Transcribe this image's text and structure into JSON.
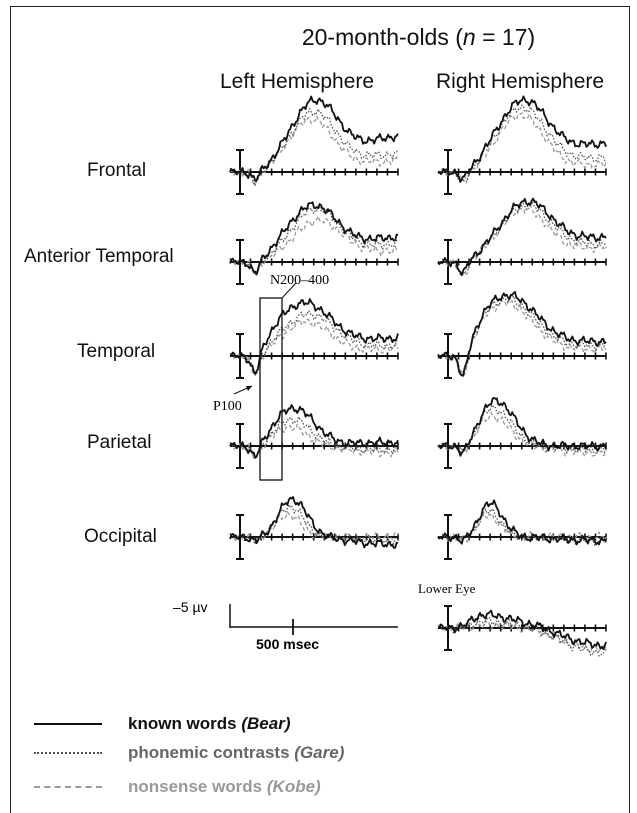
{
  "title": {
    "prefix": "20-month-olds (",
    "n_symbol": "n",
    "suffix": " = 17)"
  },
  "hemispheres": [
    "Left Hemisphere",
    "Right Hemisphere"
  ],
  "regions": [
    "Frontal",
    "Anterior Temporal",
    "Temporal",
    "Parietal",
    "Occipital"
  ],
  "annotations": {
    "window": "N200–400",
    "peak": "P100",
    "eye": "Lower Eye"
  },
  "scale": {
    "amplitude": "–5 µv",
    "time": "500 msec"
  },
  "legend": [
    {
      "label": "known words",
      "word": "(Bear)",
      "style": "solid",
      "color": "#111111"
    },
    {
      "label": "phonemic contrasts",
      "word": "(Gare)",
      "style": "dotted",
      "color": "#555555"
    },
    {
      "label": "nonsense words",
      "word": "(Kobe)",
      "style": "dashed",
      "color": "#999999"
    }
  ],
  "chart_data": {
    "type": "line",
    "x_unit": "msec",
    "x_range": [
      -100,
      1300
    ],
    "y_unit": "µv",
    "negative_up": true,
    "series_names": [
      "known words (Bear)",
      "phonemic contrasts (Gare)",
      "nonsense words (Kobe)"
    ],
    "panels": [
      {
        "region": "Frontal",
        "hemisphere": "Left",
        "waves": [
          {
            "peak": 9.5,
            "center": 620,
            "width": 300,
            "end": 5.0,
            "p100": 1.0
          },
          {
            "peak": 8.0,
            "center": 600,
            "width": 280,
            "end": 2.5,
            "p100": 1.5
          },
          {
            "peak": 7.0,
            "center": 580,
            "width": 270,
            "end": 1.5,
            "p100": 1.5
          }
        ]
      },
      {
        "region": "Frontal",
        "hemisphere": "Right",
        "waves": [
          {
            "peak": 9.5,
            "center": 620,
            "width": 320,
            "end": 4.0,
            "p100": 1.0
          },
          {
            "peak": 8.5,
            "center": 600,
            "width": 300,
            "end": 2.0,
            "p100": 1.5
          },
          {
            "peak": 7.5,
            "center": 590,
            "width": 280,
            "end": 1.0,
            "p100": 1.5
          }
        ]
      },
      {
        "region": "Anterior Temporal",
        "hemisphere": "Left",
        "waves": [
          {
            "peak": 7.5,
            "center": 600,
            "width": 320,
            "end": 3.5,
            "p100": 1.5
          },
          {
            "peak": 7.0,
            "center": 620,
            "width": 300,
            "end": 2.5,
            "p100": 1.5
          },
          {
            "peak": 5.5,
            "center": 640,
            "width": 300,
            "end": 1.5,
            "p100": 1.5
          }
        ]
      },
      {
        "region": "Anterior Temporal",
        "hemisphere": "Right",
        "waves": [
          {
            "peak": 8.0,
            "center": 650,
            "width": 330,
            "end": 3.5,
            "p100": 1.5
          },
          {
            "peak": 7.5,
            "center": 640,
            "width": 320,
            "end": 2.5,
            "p100": 2.0
          },
          {
            "peak": 7.0,
            "center": 620,
            "width": 300,
            "end": 2.0,
            "p100": 2.0
          }
        ]
      },
      {
        "region": "Temporal",
        "hemisphere": "Left",
        "waves": [
          {
            "peak": 7.0,
            "center": 520,
            "width": 360,
            "end": 2.5,
            "p100": 2.5
          },
          {
            "peak": 5.5,
            "center": 560,
            "width": 330,
            "end": 1.5,
            "p100": 2.5
          },
          {
            "peak": 4.5,
            "center": 540,
            "width": 300,
            "end": 1.0,
            "p100": 2.5
          }
        ]
      },
      {
        "region": "Temporal",
        "hemisphere": "Right",
        "waves": [
          {
            "peak": 8.0,
            "center": 480,
            "width": 380,
            "end": 2.0,
            "p100": 3.0
          },
          {
            "peak": 7.5,
            "center": 470,
            "width": 360,
            "end": 1.5,
            "p100": 3.0
          },
          {
            "peak": 7.0,
            "center": 460,
            "width": 340,
            "end": 1.0,
            "p100": 3.0
          }
        ]
      },
      {
        "region": "Parietal",
        "hemisphere": "Left",
        "waves": [
          {
            "peak": 5.0,
            "center": 430,
            "width": 250,
            "end": 0.5,
            "p100": 1.5
          },
          {
            "peak": 3.5,
            "center": 420,
            "width": 220,
            "end": -0.5,
            "p100": 1.5
          },
          {
            "peak": 2.5,
            "center": 400,
            "width": 200,
            "end": -1.0,
            "p100": 1.5
          }
        ]
      },
      {
        "region": "Parietal",
        "hemisphere": "Right",
        "waves": [
          {
            "peak": 6.0,
            "center": 380,
            "width": 220,
            "end": 0.0,
            "p100": 1.0
          },
          {
            "peak": 5.0,
            "center": 360,
            "width": 210,
            "end": -0.5,
            "p100": 1.0
          },
          {
            "peak": 4.0,
            "center": 350,
            "width": 200,
            "end": -1.0,
            "p100": 1.0
          }
        ]
      },
      {
        "region": "Occipital",
        "hemisphere": "Left",
        "waves": [
          {
            "peak": 5.0,
            "center": 420,
            "width": 170,
            "end": -1.0,
            "p100": 0.5
          },
          {
            "peak": 4.0,
            "center": 400,
            "width": 160,
            "end": -0.5,
            "p100": 0.5
          },
          {
            "peak": 3.0,
            "center": 380,
            "width": 150,
            "end": 0.0,
            "p100": 0.5
          }
        ]
      },
      {
        "region": "Occipital",
        "hemisphere": "Right",
        "waves": [
          {
            "peak": 4.5,
            "center": 330,
            "width": 150,
            "end": -0.5,
            "p100": 0.5
          },
          {
            "peak": 3.5,
            "center": 320,
            "width": 140,
            "end": -0.5,
            "p100": 0.5
          },
          {
            "peak": 3.0,
            "center": 310,
            "width": 140,
            "end": 0.0,
            "p100": 0.5
          }
        ]
      },
      {
        "region": "Lower Eye",
        "hemisphere": "Right",
        "waves": [
          {
            "peak": 2.0,
            "center": 150,
            "width": 500,
            "end": -2.5,
            "p100": 0.0
          },
          {
            "peak": 1.0,
            "center": 150,
            "width": 450,
            "end": -3.5,
            "p100": 0.0
          },
          {
            "peak": 0.5,
            "center": 150,
            "width": 400,
            "end": -3.0,
            "p100": 0.0
          }
        ]
      }
    ]
  }
}
